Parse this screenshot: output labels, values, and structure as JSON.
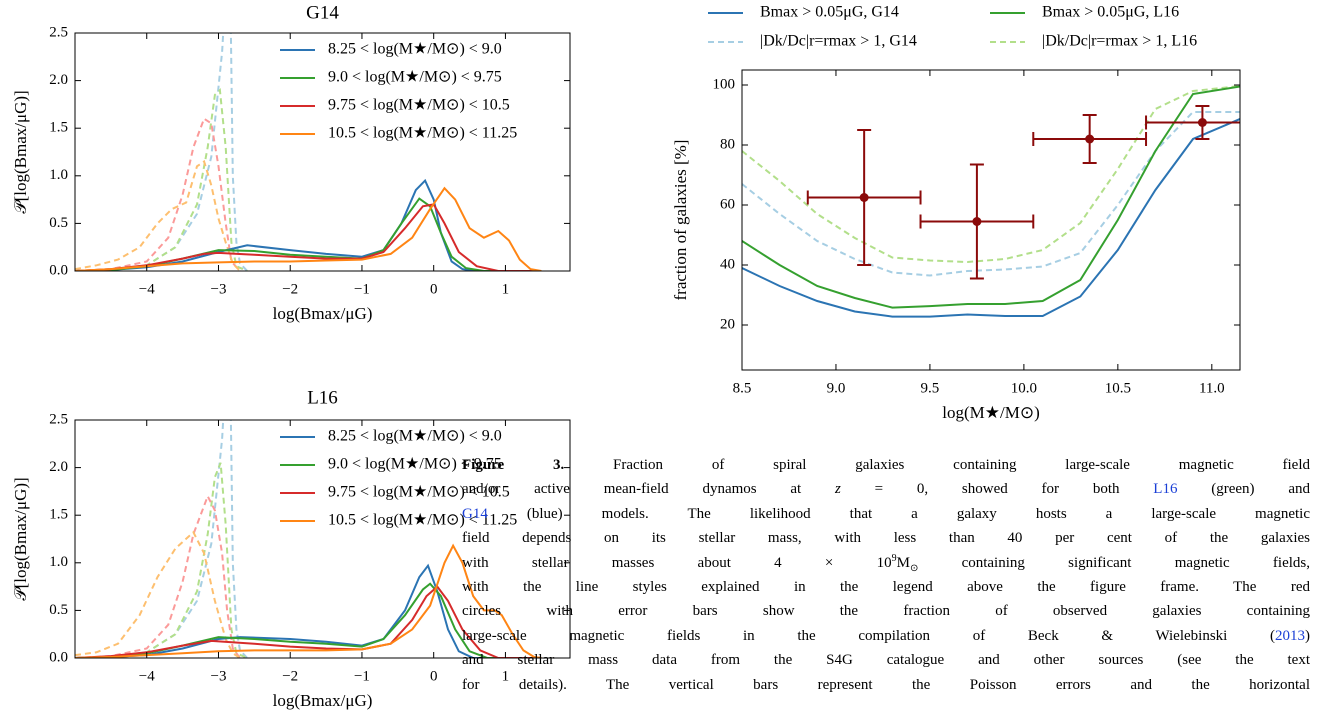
{
  "chart_data": [
    {
      "type": "line",
      "title": "G14",
      "xlabel": "log(Bmax/μG)",
      "ylabel": "𝒫[log(Bmax/μG)]",
      "xlim": [
        -5,
        1.9
      ],
      "ylim": [
        0,
        2.5
      ],
      "xticks": [
        {
          "value": -4,
          "label": "−4"
        },
        {
          "value": -3,
          "label": "−3"
        },
        {
          "value": -2,
          "label": "−2"
        },
        {
          "value": -1,
          "label": "−1"
        },
        0,
        1
      ],
      "yticks": [
        {
          "value": 0,
          "label": "0.0"
        },
        0.5,
        {
          "value": 1,
          "label": "1.0"
        },
        1.5,
        {
          "value": 2,
          "label": "2.0"
        },
        2.5
      ],
      "legend": "upper right",
      "series": [
        {
          "name": "8.25 < log(M★/M⊙) < 9.0",
          "color": "#2b74b3",
          "x": [
            -5,
            -4.5,
            -4,
            -3.5,
            -3,
            -2.6,
            -2,
            -1.5,
            -1,
            -0.7,
            -0.45,
            -0.25,
            -0.12,
            0,
            0.1,
            0.25,
            0.4,
            0.6,
            1.5
          ],
          "values": [
            0,
            0.01,
            0.04,
            0.1,
            0.2,
            0.27,
            0.22,
            0.18,
            0.15,
            0.22,
            0.5,
            0.85,
            0.95,
            0.75,
            0.4,
            0.1,
            0.02,
            0,
            0
          ]
        },
        {
          "name": "9.0 < log(M★/M⊙) < 9.75",
          "color": "#35a02f",
          "x": [
            -5,
            -4.5,
            -4,
            -3.5,
            -3,
            -2.5,
            -2,
            -1.5,
            -1,
            -0.7,
            -0.45,
            -0.2,
            -0.05,
            0.1,
            0.25,
            0.45,
            0.7,
            1.5
          ],
          "values": [
            0,
            0.01,
            0.05,
            0.13,
            0.22,
            0.21,
            0.17,
            0.15,
            0.13,
            0.22,
            0.5,
            0.76,
            0.68,
            0.4,
            0.15,
            0.03,
            0,
            0
          ]
        },
        {
          "name": "9.75 < log(M★/M⊙) < 10.5",
          "color": "#d62b2b",
          "x": [
            -5,
            -4.5,
            -4,
            -3.5,
            -3.2,
            -3,
            -2.5,
            -2,
            -1.5,
            -1,
            -0.7,
            -0.4,
            -0.15,
            0,
            0.15,
            0.35,
            0.6,
            0.9,
            1.5
          ],
          "values": [
            0,
            0.02,
            0.06,
            0.13,
            0.18,
            0.19,
            0.17,
            0.15,
            0.13,
            0.13,
            0.2,
            0.45,
            0.68,
            0.7,
            0.5,
            0.2,
            0.05,
            0,
            0
          ]
        },
        {
          "name": "10.5 < log(M★/M⊙) < 11.25",
          "color": "#ff8514",
          "x": [
            -5,
            -4.5,
            -4,
            -3.5,
            -3,
            -2.5,
            -2,
            -1.5,
            -1,
            -0.6,
            -0.3,
            -0.05,
            0.15,
            0.3,
            0.5,
            0.7,
            0.9,
            1.05,
            1.2,
            1.35,
            1.5
          ],
          "values": [
            0,
            0.02,
            0.05,
            0.08,
            0.09,
            0.1,
            0.1,
            0.11,
            0.12,
            0.18,
            0.35,
            0.65,
            0.87,
            0.75,
            0.45,
            0.35,
            0.42,
            0.32,
            0.12,
            0.02,
            0
          ]
        },
        {
          "color": "#a6cee3",
          "dashed": true,
          "x": [
            -5,
            -4.5,
            -4,
            -3.6,
            -3.3,
            -3.1,
            -2.95,
            -2.88,
            -2.84,
            -2.8,
            -2.75,
            -2.7,
            -2.6
          ],
          "values": [
            0,
            0.01,
            0.06,
            0.25,
            0.6,
            1.2,
            2.3,
            3.2,
            3.2,
            1,
            0.3,
            0.08,
            0
          ]
        },
        {
          "color": "#b2df8a",
          "dashed": true,
          "x": [
            -5,
            -4.5,
            -4,
            -3.6,
            -3.3,
            -3.15,
            -3.05,
            -2.98,
            -2.9,
            -2.82,
            -2.75,
            -2.6
          ],
          "values": [
            0,
            0.01,
            0.06,
            0.25,
            0.7,
            1.3,
            1.85,
            1.9,
            1.3,
            0.3,
            0.05,
            0
          ]
        },
        {
          "color": "#fb9a99",
          "dashed": true,
          "x": [
            -5,
            -4.5,
            -4,
            -3.7,
            -3.5,
            -3.35,
            -3.2,
            -3.1,
            -3,
            -2.9,
            -2.82,
            -2.7
          ],
          "values": [
            0,
            0.02,
            0.1,
            0.35,
            0.8,
            1.3,
            1.6,
            1.55,
            1.1,
            0.5,
            0.1,
            0
          ]
        },
        {
          "color": "#fdbf6f",
          "dashed": true,
          "x": [
            -5,
            -4.7,
            -4.4,
            -4.1,
            -3.85,
            -3.65,
            -3.45,
            -3.3,
            -3.2,
            -3.1,
            -3,
            -2.9,
            -2.8,
            -2.7
          ],
          "values": [
            0.02,
            0.06,
            0.12,
            0.25,
            0.5,
            0.65,
            0.72,
            1.1,
            1.15,
            0.9,
            0.55,
            0.3,
            0.08,
            0
          ]
        }
      ]
    },
    {
      "type": "line",
      "xlabel": "log(M★/M⊙)",
      "ylabel": "fraction of galaxies [%]",
      "xlim": [
        8.5,
        11.15
      ],
      "ylim": [
        5,
        105
      ],
      "xticks": [
        8.5,
        {
          "value": 9,
          "label": "9.0"
        },
        9.5,
        {
          "value": 10,
          "label": "10.0"
        },
        10.5,
        {
          "value": 11,
          "label": "11.0"
        }
      ],
      "yticks": [
        20,
        40,
        60,
        80,
        100
      ],
      "legend": "top",
      "series": [
        {
          "name": "Bmax > 0.05μG, G14",
          "color": "#2b74b3",
          "x": [
            8.5,
            8.7,
            8.9,
            9.1,
            9.3,
            9.5,
            9.7,
            9.9,
            10.1,
            10.3,
            10.5,
            10.7,
            10.9,
            11.2
          ],
          "values": [
            39,
            33,
            28,
            24.5,
            22.8,
            22.8,
            23.5,
            23,
            23,
            29.5,
            45,
            65,
            82,
            90
          ]
        },
        {
          "name": "|Dk/Dc|r=rmax > 1, G14",
          "color": "#a6cee3",
          "dashed": true,
          "x": [
            8.5,
            8.7,
            8.9,
            9.1,
            9.3,
            9.5,
            9.7,
            9.9,
            10.1,
            10.3,
            10.5,
            10.7,
            10.9,
            11.2
          ],
          "values": [
            67,
            57,
            48,
            42,
            37.5,
            36.5,
            38,
            38.5,
            39.5,
            44,
            60,
            78,
            91,
            91
          ]
        },
        {
          "name": "Bmax > 0.05μG, L16",
          "color": "#35a02f",
          "x": [
            8.5,
            8.7,
            8.9,
            9.1,
            9.3,
            9.5,
            9.7,
            9.9,
            10.1,
            10.3,
            10.5,
            10.7,
            10.9,
            11.2
          ],
          "values": [
            48,
            40,
            33,
            29,
            25.8,
            26.3,
            27,
            27,
            28,
            35,
            55,
            78,
            97,
            100
          ]
        },
        {
          "name": "|Dk/Dc|r=rmax > 1, L16",
          "color": "#b2df8a",
          "dashed": true,
          "x": [
            8.5,
            8.7,
            8.9,
            9.1,
            9.3,
            9.5,
            9.7,
            9.9,
            10.1,
            10.3,
            10.5,
            10.7,
            10.9,
            11.2
          ],
          "values": [
            78,
            68,
            57,
            49,
            42.5,
            41.5,
            41,
            42,
            45,
            54,
            72,
            92,
            98,
            100
          ]
        }
      ],
      "points": {
        "color": "#8b0a0a",
        "x": [
          9.15,
          9.75,
          10.35,
          10.95
        ],
        "values": [
          62.5,
          54.5,
          82,
          87.5
        ],
        "xerr": [
          0.3,
          0.3,
          0.3,
          0.3
        ],
        "yerr": [
          22.5,
          19,
          8,
          5.5
        ]
      }
    },
    {
      "type": "line",
      "title": "L16",
      "xlabel": "log(Bmax/μG)",
      "ylabel": "𝒫[log(Bmax/μG)]",
      "xlim": [
        -5,
        1.9
      ],
      "ylim": [
        0,
        2.5
      ],
      "xticks": [
        {
          "value": -4,
          "label": "−4"
        },
        {
          "value": -3,
          "label": "−3"
        },
        {
          "value": -2,
          "label": "−2"
        },
        {
          "value": -1,
          "label": "−1"
        },
        0,
        1
      ],
      "yticks": [
        {
          "value": 0,
          "label": "0.0"
        },
        0.5,
        {
          "value": 1,
          "label": "1.0"
        },
        1.5,
        {
          "value": 2,
          "label": "2.0"
        },
        2.5
      ],
      "legend": "upper right",
      "series": [
        {
          "name": "8.25 < log(M★/M⊙) < 9.0",
          "color": "#2b74b3",
          "x": [
            -5,
            -4.5,
            -4,
            -3.5,
            -3,
            -2.7,
            -2,
            -1.5,
            -1,
            -0.7,
            -0.4,
            -0.2,
            -0.08,
            0.05,
            0.2,
            0.35,
            0.55,
            1.5
          ],
          "values": [
            0,
            0.01,
            0.03,
            0.1,
            0.2,
            0.22,
            0.2,
            0.17,
            0.13,
            0.2,
            0.5,
            0.85,
            0.97,
            0.7,
            0.3,
            0.07,
            0,
            0
          ]
        },
        {
          "name": "9.0 < log(M★/M⊙) < 9.75",
          "color": "#35a02f",
          "x": [
            -5,
            -4.5,
            -4,
            -3.5,
            -3,
            -2.5,
            -2,
            -1.5,
            -1,
            -0.7,
            -0.4,
            -0.15,
            -0.05,
            0.1,
            0.3,
            0.5,
            0.75,
            1.5
          ],
          "values": [
            0,
            0.01,
            0.05,
            0.13,
            0.22,
            0.2,
            0.17,
            0.15,
            0.12,
            0.2,
            0.45,
            0.72,
            0.78,
            0.65,
            0.3,
            0.07,
            0,
            0
          ]
        },
        {
          "name": "9.75 < log(M★/M⊙) < 10.5",
          "color": "#d62b2b",
          "x": [
            -5,
            -4.5,
            -4,
            -3.5,
            -3.1,
            -2.5,
            -2,
            -1.5,
            -1,
            -0.6,
            -0.3,
            -0.1,
            0.05,
            0.2,
            0.4,
            0.65,
            0.9,
            1.5
          ],
          "values": [
            0,
            0.02,
            0.06,
            0.13,
            0.18,
            0.15,
            0.12,
            0.1,
            0.09,
            0.15,
            0.4,
            0.65,
            0.75,
            0.6,
            0.3,
            0.08,
            0,
            0
          ]
        },
        {
          "name": "10.5 < log(M★/M⊙) < 11.25",
          "color": "#ff8514",
          "x": [
            -5,
            -4.5,
            -4,
            -3.5,
            -3,
            -2.5,
            -2,
            -1.5,
            -1,
            -0.6,
            -0.3,
            -0.05,
            0.15,
            0.27,
            0.4,
            0.55,
            0.7,
            0.85,
            0.95,
            1.1,
            1.25,
            1.4,
            1.5
          ],
          "values": [
            0,
            0.01,
            0.03,
            0.05,
            0.07,
            0.08,
            0.08,
            0.08,
            0.09,
            0.15,
            0.3,
            0.55,
            1,
            1.18,
            1,
            0.65,
            0.5,
            0.5,
            0.45,
            0.25,
            0.08,
            0.01,
            0
          ]
        },
        {
          "color": "#a6cee3",
          "dashed": true,
          "x": [
            -5,
            -4.5,
            -4,
            -3.6,
            -3.3,
            -3.1,
            -2.95,
            -2.88,
            -2.84,
            -2.8,
            -2.75,
            -2.7,
            -2.6
          ],
          "values": [
            0,
            0.01,
            0.06,
            0.25,
            0.6,
            1.2,
            2.3,
            3.2,
            3.2,
            1,
            0.3,
            0.08,
            0
          ]
        },
        {
          "color": "#b2df8a",
          "dashed": true,
          "x": [
            -5,
            -4.5,
            -4,
            -3.6,
            -3.3,
            -3.15,
            -3.05,
            -2.97,
            -2.9,
            -2.82,
            -2.75,
            -2.6
          ],
          "values": [
            0,
            0.01,
            0.06,
            0.25,
            0.7,
            1.3,
            1.9,
            2.05,
            1.4,
            0.3,
            0.05,
            0
          ]
        },
        {
          "color": "#fb9a99",
          "dashed": true,
          "x": [
            -5,
            -4.5,
            -4,
            -3.7,
            -3.5,
            -3.35,
            -3.15,
            -3.05,
            -2.95,
            -2.88,
            -2.8,
            -2.7
          ],
          "values": [
            0,
            0.02,
            0.1,
            0.35,
            0.8,
            1.3,
            1.7,
            1.55,
            1.1,
            0.5,
            0.1,
            0
          ]
        },
        {
          "color": "#fdbf6f",
          "dashed": true,
          "x": [
            -5,
            -4.7,
            -4.4,
            -4.1,
            -3.85,
            -3.6,
            -3.35,
            -3.2,
            -3.05,
            -2.9,
            -2.8,
            -2.7
          ],
          "values": [
            0.03,
            0.06,
            0.15,
            0.45,
            0.85,
            1.15,
            1.32,
            1.1,
            0.6,
            0.2,
            0.05,
            0
          ]
        }
      ]
    }
  ],
  "caption": {
    "lines": [
      [
        "Figure 3.",
        " Fraction of spiral galaxies containing large-scale magnetic field"
      ],
      [
        "and/or active mean-field dynamos at ",
        "z",
        " = 0, showed for both ",
        "L16",
        " (green) and"
      ],
      [
        "G14",
        " (blue) models. The likelihood that a galaxy hosts a large-scale magnetic"
      ],
      [
        "field depends on its stellar mass, with less than 40 per cent of the galaxies"
      ],
      [
        "with stellar masses about 4 × 10",
        "9",
        "M",
        "⊙",
        " containing significant magnetic fields,"
      ],
      [
        "with the line styles explained in the legend above the figure frame. The red"
      ],
      [
        "circles with error bars show the fraction of observed galaxies containing"
      ],
      [
        "large-scale magnetic fields in the compilation of Beck & Wielebinski (",
        "2013",
        ")"
      ],
      [
        "and stellar mass data from the S4G catalogue and other sources (see the text"
      ],
      [
        "for details). The vertical bars represent the Poisson errors and the horizontal"
      ]
    ]
  }
}
